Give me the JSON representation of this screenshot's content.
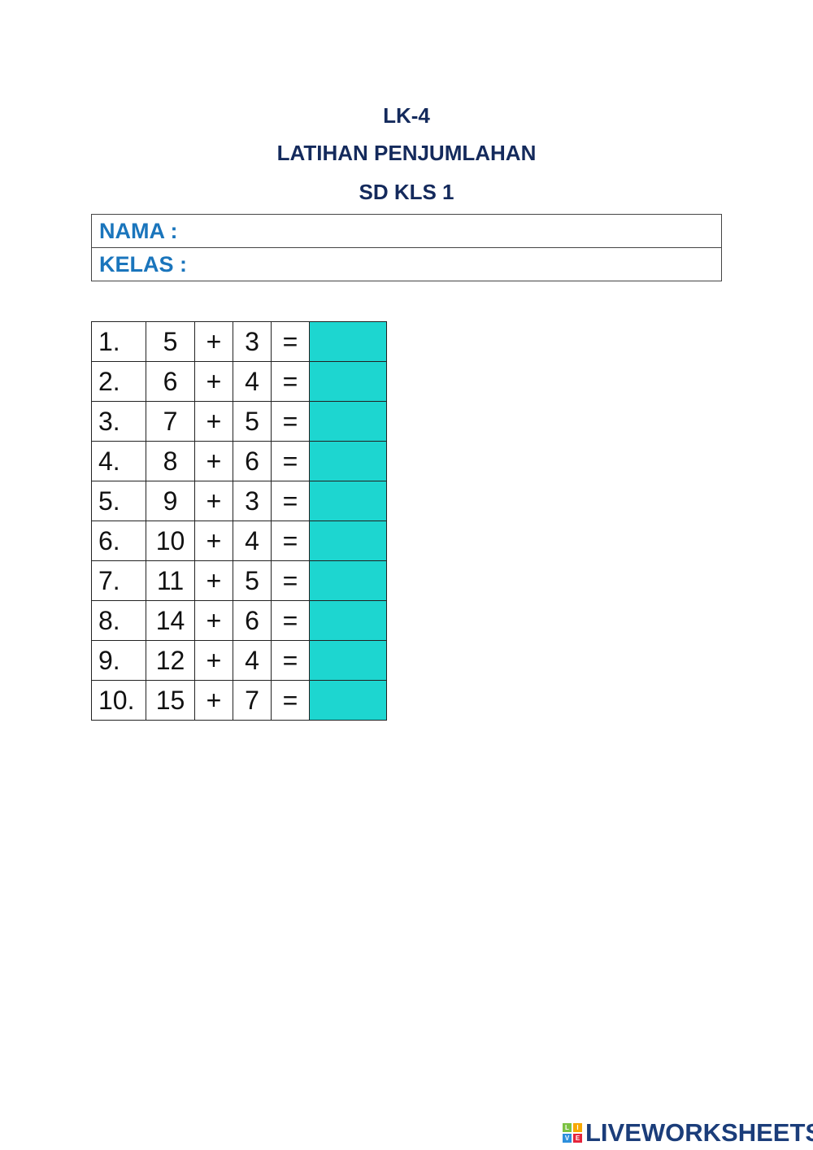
{
  "header": {
    "line1": "LK-4",
    "line2": "LATIHAN PENJUMLAHAN",
    "line3": "SD KLS 1"
  },
  "info": {
    "nama_label": "NAMA :",
    "kelas_label": "KELAS :"
  },
  "exercises": [
    {
      "no": "1.",
      "a": "5",
      "op": "+",
      "b": "3",
      "eq": "="
    },
    {
      "no": "2.",
      "a": "6",
      "op": "+",
      "b": "4",
      "eq": "="
    },
    {
      "no": "3.",
      "a": "7",
      "op": "+",
      "b": "5",
      "eq": "="
    },
    {
      "no": "4.",
      "a": "8",
      "op": "+",
      "b": "6",
      "eq": "="
    },
    {
      "no": "5.",
      "a": "9",
      "op": "+",
      "b": "3",
      "eq": "="
    },
    {
      "no": "6.",
      "a": "10",
      "op": "+",
      "b": "4",
      "eq": "="
    },
    {
      "no": "7.",
      "a": "11",
      "op": "+",
      "b": "5",
      "eq": "="
    },
    {
      "no": "8.",
      "a": "14",
      "op": "+",
      "b": "6",
      "eq": "="
    },
    {
      "no": "9.",
      "a": "12",
      "op": "+",
      "b": "4",
      "eq": "="
    },
    {
      "no": "10.",
      "a": "15",
      "op": "+",
      "b": "7",
      "eq": "="
    }
  ],
  "colors": {
    "title": "#142a5c",
    "label": "#1a75bc",
    "answer_box": "#1dd6d0"
  },
  "logo": {
    "text": "LIVEWORKSHEETS",
    "letters": [
      "L",
      "I",
      "V",
      "E"
    ]
  }
}
